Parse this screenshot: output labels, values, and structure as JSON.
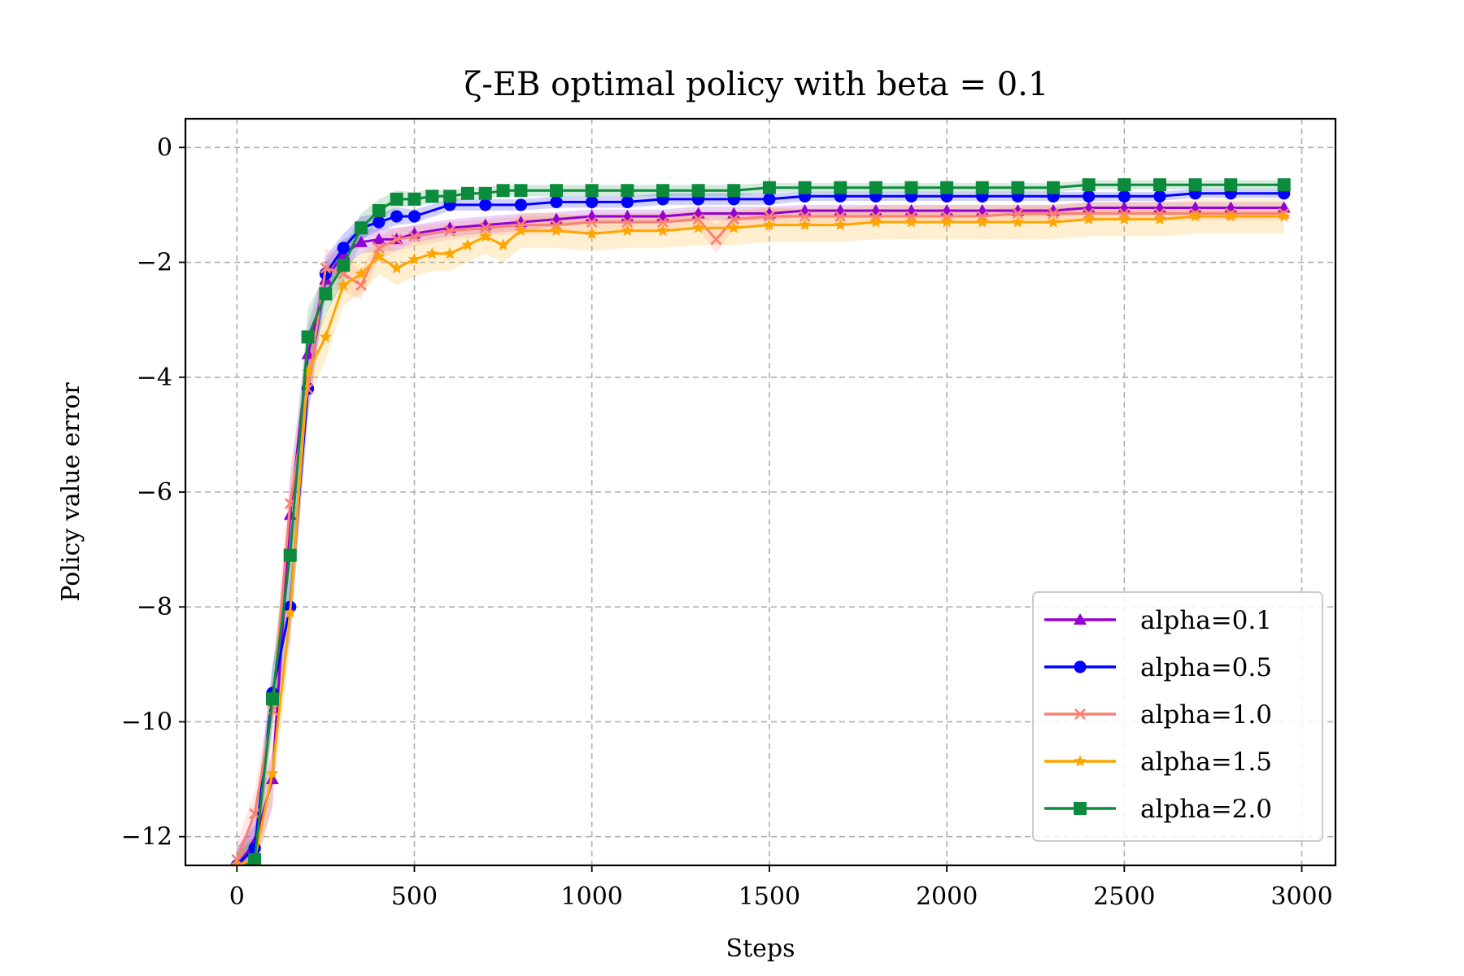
{
  "chart_data": {
    "type": "line",
    "title": "ζ-EB optimal policy with beta = 0.1",
    "xlabel": "Steps",
    "ylabel": "Policy value error",
    "xlim": [
      -145,
      3095
    ],
    "ylim": [
      -12.5,
      0.5
    ],
    "xticks": [
      0,
      500,
      1000,
      1500,
      2000,
      2500,
      3000
    ],
    "yticks": [
      0,
      -2,
      -4,
      -6,
      -8,
      -10,
      -12
    ],
    "xtick_labels": [
      "0",
      "500",
      "1000",
      "1500",
      "2000",
      "2500",
      "3000"
    ],
    "ytick_labels": [
      "0",
      "−2",
      "−4",
      "−6",
      "−8",
      "−10",
      "−12"
    ],
    "grid": true,
    "legend_position": "lower right",
    "shaded_band": true,
    "series": [
      {
        "name": "alpha=0.1",
        "color": "#9400D3",
        "marker": "triangle",
        "x": [
          0,
          50,
          100,
          150,
          200,
          250,
          300,
          350,
          400,
          450,
          500,
          600,
          700,
          800,
          900,
          1000,
          1100,
          1200,
          1300,
          1400,
          1500,
          1600,
          1700,
          1800,
          1900,
          2000,
          2100,
          2200,
          2300,
          2400,
          2500,
          2600,
          2700,
          2800,
          2950
        ],
        "y": [
          -12.5,
          -12.1,
          -11.0,
          -6.4,
          -3.6,
          -2.3,
          -1.85,
          -1.65,
          -1.6,
          -1.6,
          -1.5,
          -1.4,
          -1.35,
          -1.3,
          -1.25,
          -1.2,
          -1.2,
          -1.2,
          -1.15,
          -1.15,
          -1.15,
          -1.1,
          -1.1,
          -1.1,
          -1.1,
          -1.1,
          -1.1,
          -1.1,
          -1.1,
          -1.05,
          -1.05,
          -1.05,
          -1.05,
          -1.05,
          -1.05
        ],
        "band": [
          0.3,
          0.4,
          0.5,
          0.6,
          0.5,
          0.3,
          0.25,
          0.2,
          0.2,
          0.2,
          0.15,
          0.15,
          0.15,
          0.15,
          0.12,
          0.12,
          0.12,
          0.12,
          0.12,
          0.12,
          0.12,
          0.1,
          0.1,
          0.1,
          0.1,
          0.1,
          0.1,
          0.1,
          0.1,
          0.1,
          0.1,
          0.1,
          0.1,
          0.1,
          0.1
        ]
      },
      {
        "name": "alpha=0.5",
        "color": "#0000FF",
        "marker": "circle",
        "x": [
          0,
          50,
          100,
          150,
          200,
          250,
          300,
          350,
          400,
          450,
          500,
          600,
          700,
          800,
          900,
          1000,
          1100,
          1200,
          1300,
          1400,
          1500,
          1600,
          1700,
          1800,
          1900,
          2000,
          2100,
          2200,
          2300,
          2400,
          2500,
          2600,
          2700,
          2800,
          2950
        ],
        "y": [
          -12.5,
          -12.2,
          -9.5,
          -8.0,
          -4.2,
          -2.2,
          -1.75,
          -1.4,
          -1.3,
          -1.2,
          -1.2,
          -1.0,
          -1.0,
          -1.0,
          -0.95,
          -0.95,
          -0.95,
          -0.9,
          -0.9,
          -0.9,
          -0.9,
          -0.85,
          -0.85,
          -0.85,
          -0.85,
          -0.85,
          -0.85,
          -0.85,
          -0.85,
          -0.85,
          -0.85,
          -0.85,
          -0.8,
          -0.8,
          -0.8
        ],
        "band": [
          0.3,
          0.4,
          0.5,
          0.6,
          0.5,
          0.3,
          0.25,
          0.2,
          0.15,
          0.15,
          0.12,
          0.1,
          0.1,
          0.1,
          0.1,
          0.1,
          0.1,
          0.1,
          0.1,
          0.1,
          0.1,
          0.08,
          0.08,
          0.08,
          0.08,
          0.08,
          0.08,
          0.08,
          0.08,
          0.08,
          0.08,
          0.08,
          0.08,
          0.08,
          0.08
        ]
      },
      {
        "name": "alpha=1.0",
        "color": "#FA8072",
        "marker": "x",
        "x": [
          0,
          50,
          100,
          150,
          200,
          250,
          300,
          350,
          400,
          450,
          500,
          600,
          700,
          800,
          900,
          1000,
          1100,
          1200,
          1300,
          1350,
          1400,
          1500,
          1600,
          1700,
          1800,
          1900,
          2000,
          2100,
          2200,
          2300,
          2400,
          2500,
          2600,
          2700,
          2800,
          2950
        ],
        "y": [
          -12.4,
          -11.6,
          -9.8,
          -6.2,
          -4.2,
          -2.1,
          -2.2,
          -2.4,
          -1.75,
          -1.6,
          -1.55,
          -1.45,
          -1.4,
          -1.35,
          -1.35,
          -1.3,
          -1.3,
          -1.3,
          -1.25,
          -1.6,
          -1.25,
          -1.2,
          -1.2,
          -1.2,
          -1.2,
          -1.2,
          -1.2,
          -1.2,
          -1.15,
          -1.15,
          -1.15,
          -1.15,
          -1.15,
          -1.15,
          -1.15,
          -1.15
        ],
        "band": [
          0.3,
          0.4,
          0.5,
          0.6,
          0.5,
          0.35,
          0.3,
          0.25,
          0.2,
          0.2,
          0.18,
          0.15,
          0.15,
          0.15,
          0.15,
          0.15,
          0.15,
          0.15,
          0.15,
          0.25,
          0.15,
          0.15,
          0.12,
          0.12,
          0.12,
          0.12,
          0.12,
          0.12,
          0.12,
          0.12,
          0.12,
          0.12,
          0.12,
          0.12,
          0.12,
          0.12
        ]
      },
      {
        "name": "alpha=1.5",
        "color": "#FFA500",
        "marker": "star",
        "x": [
          0,
          50,
          100,
          150,
          200,
          250,
          300,
          350,
          400,
          450,
          500,
          550,
          600,
          650,
          700,
          750,
          800,
          900,
          1000,
          1100,
          1200,
          1300,
          1400,
          1500,
          1600,
          1700,
          1800,
          1900,
          2000,
          2100,
          2200,
          2300,
          2400,
          2500,
          2600,
          2700,
          2800,
          2950
        ],
        "y": [
          -12.5,
          -12.4,
          -10.9,
          -8.1,
          -3.9,
          -3.3,
          -2.4,
          -2.2,
          -1.9,
          -2.1,
          -1.95,
          -1.85,
          -1.85,
          -1.7,
          -1.55,
          -1.7,
          -1.45,
          -1.45,
          -1.5,
          -1.45,
          -1.45,
          -1.4,
          -1.4,
          -1.35,
          -1.35,
          -1.35,
          -1.3,
          -1.3,
          -1.3,
          -1.3,
          -1.3,
          -1.3,
          -1.25,
          -1.25,
          -1.25,
          -1.2,
          -1.2,
          -1.2
        ],
        "band": [
          0.3,
          0.4,
          0.5,
          0.6,
          0.5,
          0.4,
          0.35,
          0.35,
          0.3,
          0.3,
          0.3,
          0.3,
          0.3,
          0.3,
          0.3,
          0.3,
          0.3,
          0.3,
          0.3,
          0.3,
          0.3,
          0.3,
          0.3,
          0.3,
          0.3,
          0.3,
          0.3,
          0.3,
          0.3,
          0.3,
          0.3,
          0.3,
          0.3,
          0.3,
          0.3,
          0.3,
          0.3,
          0.3
        ]
      },
      {
        "name": "alpha=2.0",
        "color": "#0B8B3B",
        "marker": "square",
        "x": [
          0,
          50,
          100,
          150,
          200,
          250,
          300,
          350,
          400,
          450,
          500,
          550,
          600,
          650,
          700,
          750,
          800,
          900,
          1000,
          1100,
          1200,
          1300,
          1400,
          1500,
          1600,
          1700,
          1800,
          1900,
          2000,
          2100,
          2200,
          2300,
          2400,
          2500,
          2600,
          2700,
          2800,
          2950
        ],
        "y": [
          -12.6,
          -12.4,
          -9.6,
          -7.1,
          -3.3,
          -2.55,
          -2.05,
          -1.4,
          -1.1,
          -0.9,
          -0.9,
          -0.85,
          -0.85,
          -0.8,
          -0.8,
          -0.75,
          -0.75,
          -0.75,
          -0.75,
          -0.75,
          -0.75,
          -0.75,
          -0.75,
          -0.7,
          -0.7,
          -0.7,
          -0.7,
          -0.7,
          -0.7,
          -0.7,
          -0.7,
          -0.7,
          -0.65,
          -0.65,
          -0.65,
          -0.65,
          -0.65,
          -0.65
        ],
        "band": [
          0.3,
          0.4,
          0.5,
          0.6,
          0.5,
          0.35,
          0.3,
          0.25,
          0.2,
          0.15,
          0.12,
          0.12,
          0.1,
          0.1,
          0.1,
          0.1,
          0.1,
          0.1,
          0.1,
          0.1,
          0.1,
          0.1,
          0.1,
          0.08,
          0.08,
          0.08,
          0.08,
          0.08,
          0.08,
          0.08,
          0.08,
          0.08,
          0.08,
          0.08,
          0.08,
          0.08,
          0.08,
          0.08
        ]
      }
    ]
  }
}
